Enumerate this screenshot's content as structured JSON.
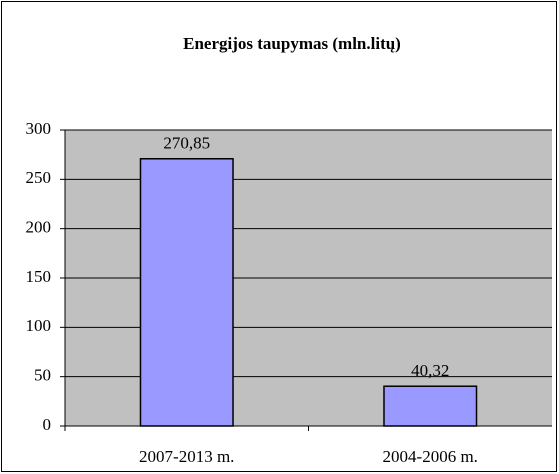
{
  "chart_data": {
    "type": "bar",
    "title": "Energijos taupymas (mln.litų)",
    "categories": [
      "2007-2013 m.",
      "2004-2006 m."
    ],
    "values": [
      270.85,
      40.32
    ],
    "value_labels": [
      "270,85",
      "40,32"
    ],
    "color": "#9999ff",
    "plot_background": "#c0c0c0",
    "ylim": [
      0,
      300
    ],
    "yticks": [
      0,
      50,
      100,
      150,
      200,
      250,
      300
    ],
    "grid": true
  }
}
